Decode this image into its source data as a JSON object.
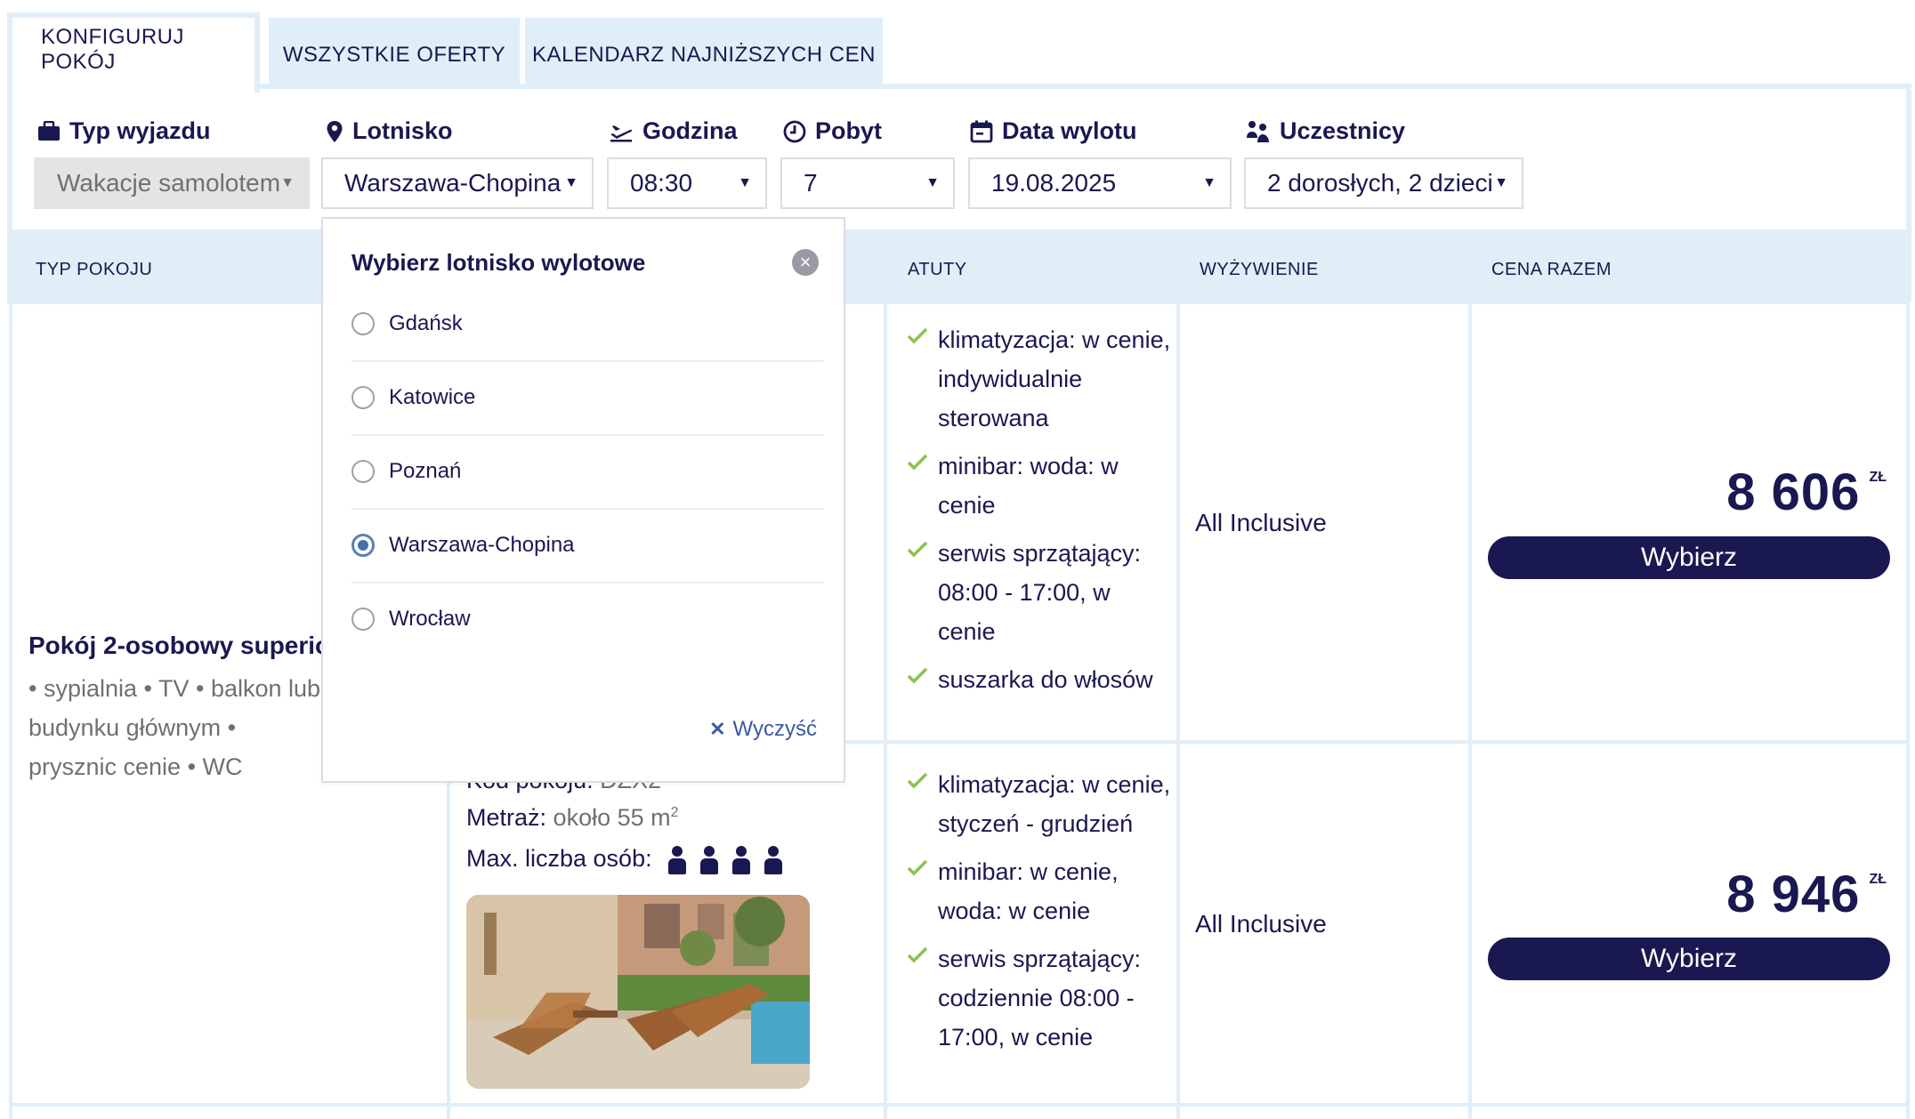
{
  "tabs": [
    {
      "label": "KONFIGURUJ POKÓJ",
      "active": true
    },
    {
      "label": "WSZYSTKIE OFERTY",
      "active": false
    },
    {
      "label": "KALENDARZ NAJNIŻSZYCH CEN",
      "active": false
    }
  ],
  "config": {
    "trip_type": {
      "label": "Typ wyjazdu",
      "value": "Wakacje samolotem",
      "icon": "briefcase-icon"
    },
    "airport": {
      "label": "Lotnisko",
      "value": "Warszawa-Chopina",
      "icon": "map-pin-icon"
    },
    "time": {
      "label": "Godzina",
      "value": "08:30",
      "icon": "plane-departure-icon"
    },
    "stay": {
      "label": "Pobyt",
      "value": "7",
      "icon": "clock-icon"
    },
    "date": {
      "label": "Data wylotu",
      "value": "19.08.2025",
      "icon": "calendar-icon"
    },
    "participants": {
      "label": "Uczestnicy",
      "value": "2 dorosłych, 2 dzieci",
      "icon": "people-icon"
    },
    "arrow": "▼"
  },
  "table": {
    "headers": [
      "TYP POKOJU",
      "ATUTY",
      "WYŻYWIENIE",
      "CENA RAZEM"
    ]
  },
  "room": {
    "title": "Pokój 2-osobowy superior",
    "desc": "• sypialnia • TV • balkon lub budynku głównym • prysznic cenie • WC",
    "code_label": "Kod pokoju:",
    "code_value": "DZX2",
    "area_label": "Metraż:",
    "area_value": "około 55 m",
    "area_sup": "2",
    "max_label": "Max. liczba osób:",
    "max_persons": 4
  },
  "offers": [
    {
      "features": [
        "klimatyzacja: w cenie, indywidualnie sterowana",
        "minibar: woda: w cenie",
        "serwis sprzątający: 08:00 - 17:00, w cenie",
        "suszarka do włosów"
      ],
      "board": "All Inclusive",
      "price": "8 606",
      "currency": "ZŁ",
      "button": "Wybierz"
    },
    {
      "features": [
        "klimatyzacja: w cenie, styczeń - grudzień",
        "minibar: w cenie, woda: w cenie",
        "serwis sprzątający: codziennie 08:00 - 17:00, w cenie"
      ],
      "board": "All Inclusive",
      "price": "8 946",
      "currency": "ZŁ",
      "button": "Wybierz"
    }
  ],
  "airport_popup": {
    "title": "Wybierz lotnisko wylotowe",
    "options": [
      "Gdańsk",
      "Katowice",
      "Poznań",
      "Warszawa-Chopina",
      "Wrocław"
    ],
    "selected": "Warszawa-Chopina",
    "clear_label": "Wyczyść",
    "close": "×"
  }
}
